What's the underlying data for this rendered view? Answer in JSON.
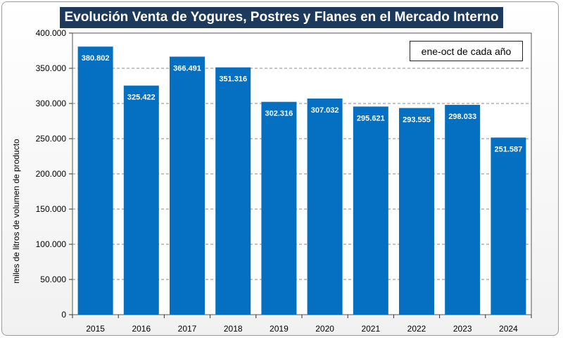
{
  "chart_data": {
    "type": "bar",
    "title": "Evolución Venta de Yogures, Postres y Flanes en el Mercado Interno",
    "note": "ene-oct de cada año",
    "ylabel": "miles de litros de volumen de producto",
    "xlabel": "",
    "categories": [
      "2015",
      "2016",
      "2017",
      "2018",
      "2019",
      "2020",
      "2021",
      "2022",
      "2023",
      "2024"
    ],
    "values": [
      380802,
      325422,
      366491,
      351316,
      302316,
      307032,
      295621,
      293555,
      298033,
      251587
    ],
    "value_labels": [
      "380.802",
      "325.422",
      "366.491",
      "351.316",
      "302.316",
      "307.032",
      "295.621",
      "293.555",
      "298.033",
      "251.587"
    ],
    "ylim": [
      0,
      400000
    ],
    "yticks": [
      0,
      50000,
      100000,
      150000,
      200000,
      250000,
      300000,
      350000,
      400000
    ],
    "ytick_labels": [
      "0",
      "50.000",
      "100.000",
      "150.000",
      "200.000",
      "250.000",
      "300.000",
      "350.000",
      "400.000"
    ],
    "grid": true,
    "bar_color": "#0570c1"
  }
}
